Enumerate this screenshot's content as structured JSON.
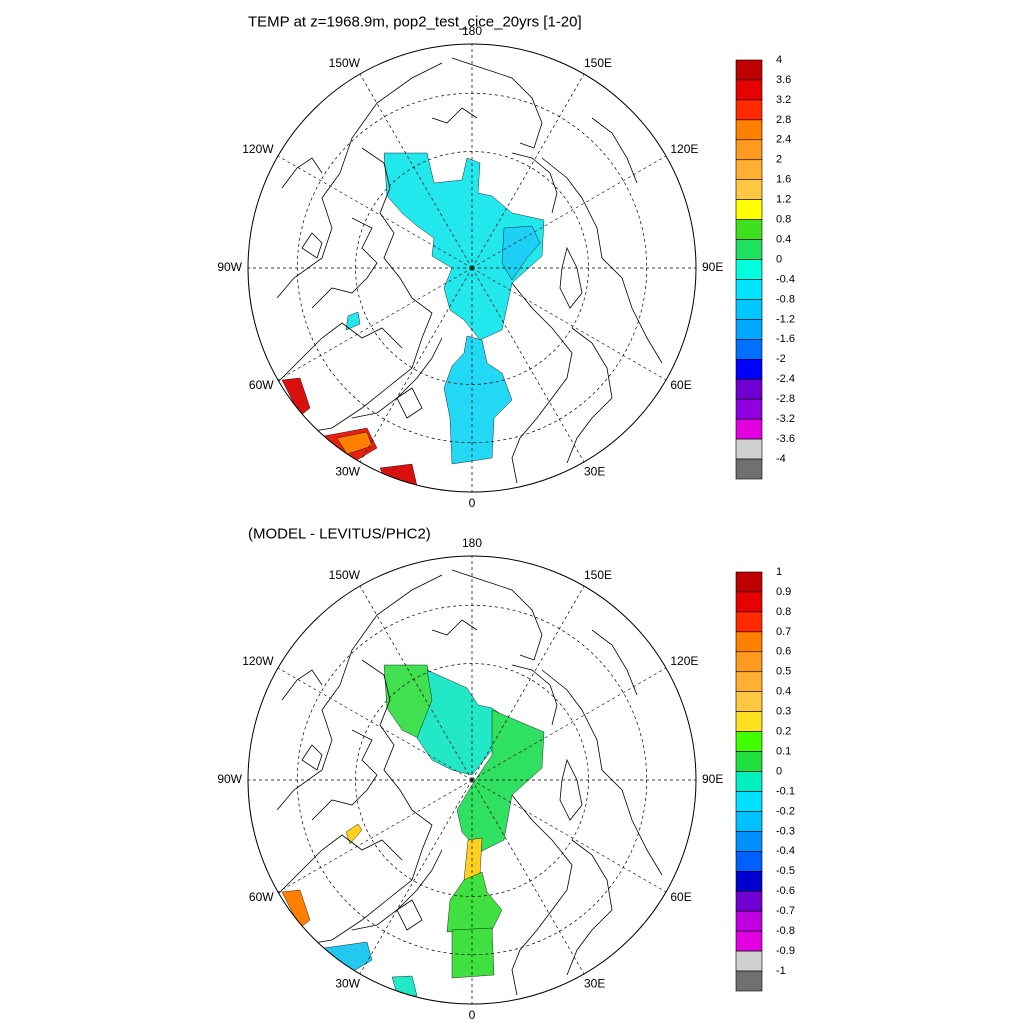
{
  "panels": [
    {
      "title": "TEMP at z=1968.9m, pop2_test_cice_20yrs [1-20]",
      "lon_labels": [
        "180",
        "150E",
        "120E",
        "90E",
        "60E",
        "30E",
        "0",
        "30W",
        "60W",
        "90W",
        "120W",
        "150W"
      ],
      "colorbar": {
        "labels": [
          "4",
          "3.6",
          "3.2",
          "2.8",
          "2.4",
          "2",
          "1.6",
          "1.2",
          "0.8",
          "0.4",
          "0",
          "-0.4",
          "-0.8",
          "-1.2",
          "-1.6",
          "-2",
          "-2.4",
          "-2.8",
          "-3.2",
          "-3.6",
          "-4"
        ],
        "colors": [
          "#c00000",
          "#e60000",
          "#ff2a00",
          "#ff7f00",
          "#ff9a20",
          "#ffb030",
          "#ffc840",
          "#ffff00",
          "#40e020",
          "#20e060",
          "#00ffdd",
          "#00e5ff",
          "#00c8ff",
          "#00a8ff",
          "#0070ff",
          "#0000ff",
          "#7000d0",
          "#9000e0",
          "#e000e0",
          "#d0d0d0",
          "#707070"
        ]
      },
      "regions": [
        {
          "name": "arctic-basin",
          "value_label": "-0.4",
          "color": "#22e8ee"
        },
        {
          "name": "eurasian-basin-core",
          "value_label": "-0.8",
          "color": "#1ed0f5"
        },
        {
          "name": "greenland-sea",
          "value_label": "-0.8",
          "color": "#22d8f5"
        },
        {
          "name": "baffin-patch",
          "value_label": "-0.4",
          "color": "#22e8ee"
        },
        {
          "name": "labrador-sea",
          "value_label": "3.6",
          "color": "#d81010"
        },
        {
          "name": "irminger-sea",
          "value_label": "3.2",
          "color": "#e82010"
        },
        {
          "name": "irminger-core",
          "value_label": "2.8",
          "color": "#ff8000"
        },
        {
          "name": "south-iceland",
          "value_label": "3.6",
          "color": "#d81010"
        }
      ]
    },
    {
      "title": "(MODEL - LEVITUS/PHC2)",
      "lon_labels": [
        "180",
        "150E",
        "120E",
        "90E",
        "60E",
        "30E",
        "0",
        "30W",
        "60W",
        "90W",
        "120W",
        "150W"
      ],
      "colorbar": {
        "labels": [
          "1",
          "0.9",
          "0.8",
          "0.7",
          "0.6",
          "0.5",
          "0.4",
          "0.3",
          "0.2",
          "0.1",
          "0",
          "-0.1",
          "-0.2",
          "-0.3",
          "-0.4",
          "-0.5",
          "-0.6",
          "-0.7",
          "-0.8",
          "-0.9",
          "-1"
        ],
        "colors": [
          "#c00000",
          "#e60000",
          "#ff2a00",
          "#ff7f00",
          "#ff9a20",
          "#ffb030",
          "#ffc840",
          "#ffe020",
          "#40ff00",
          "#20e040",
          "#00f0c0",
          "#00e0ff",
          "#00c0ff",
          "#0090ff",
          "#0060ff",
          "#0000d0",
          "#7000d0",
          "#c000e0",
          "#e000e0",
          "#d0d0d0",
          "#707070"
        ]
      },
      "regions": [
        {
          "name": "canada-basin",
          "value_label": "0.1",
          "color": "#40e050"
        },
        {
          "name": "makarov-basin",
          "value_label": "-0.1",
          "color": "#22e8c8"
        },
        {
          "name": "eurasian-basin",
          "value_label": "0.1",
          "color": "#30e060"
        },
        {
          "name": "fram-strait",
          "value_label": "0.4",
          "color": "#ffd020"
        },
        {
          "name": "greenland-sea",
          "value_label": "0.1",
          "color": "#40e040"
        },
        {
          "name": "norwegian-sea",
          "value_label": "0.1",
          "color": "#40e040"
        },
        {
          "name": "baffin-patch",
          "value_label": "0.4",
          "color": "#ffd020"
        },
        {
          "name": "labrador-sea",
          "value_label": "0.7",
          "color": "#ff8000"
        },
        {
          "name": "irminger-sea",
          "value_label": "-0.2",
          "color": "#22c8f0"
        },
        {
          "name": "south-iceland",
          "value_label": "-0.1",
          "color": "#22e8c8"
        }
      ]
    }
  ]
}
